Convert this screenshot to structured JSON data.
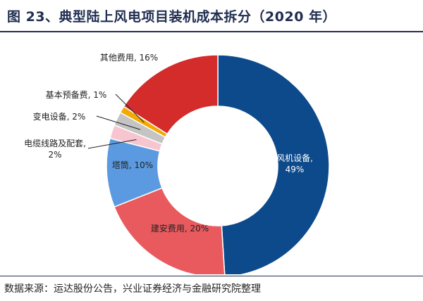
{
  "figure": {
    "title": "图 23、典型陆上风电项目装机成本拆分（2020 年）",
    "source": "数据来源：运达股份公告，兴业证券经济与金融研究院整理"
  },
  "chart_data": {
    "type": "pie",
    "title": "图 23、典型陆上风电项目装机成本拆分（2020 年）",
    "series": [
      {
        "name": "风机设备",
        "value": 49,
        "label": "49%",
        "color": "#0d4a8b"
      },
      {
        "name": "建安费用",
        "value": 20,
        "label": "20%",
        "color": "#e85a5e"
      },
      {
        "name": "塔筒",
        "value": 10,
        "label": "10%",
        "color": "#5b9ae0"
      },
      {
        "name": "电缆线路及配套",
        "value": 2,
        "label": "2%",
        "color": "#f7c5cf"
      },
      {
        "name": "变电设备",
        "value": 2,
        "label": "2%",
        "color": "#c4c4c4"
      },
      {
        "name": "基本预备费",
        "value": 1,
        "label": "1%",
        "color": "#f2a900"
      },
      {
        "name": "其他费用",
        "value": 16,
        "label": "16%",
        "color": "#d42b2b"
      }
    ],
    "labels": {
      "s0": [
        "风机设备,",
        "49%"
      ],
      "s1": "建安费用, 20%",
      "s2": "塔筒, 10%",
      "s3": [
        "电缆线路及配套,",
        "2%"
      ],
      "s4": "变电设备, 2%",
      "s5": "基本预备费, 1%",
      "s6": "其他费用, 16%"
    },
    "donut": true,
    "legend": "none"
  }
}
